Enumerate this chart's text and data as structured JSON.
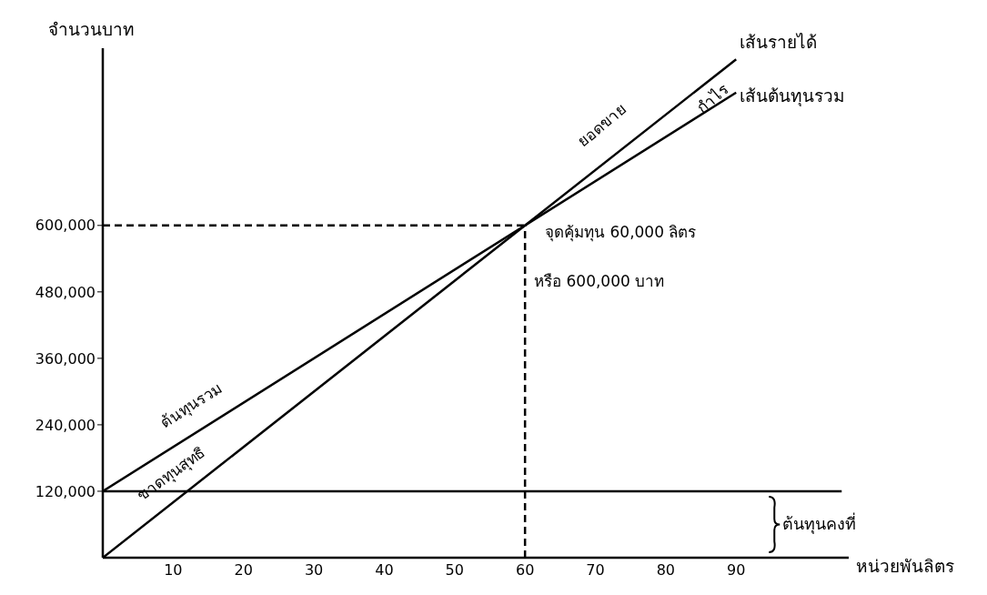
{
  "chart_data": {
    "type": "line",
    "xlabel": "หน่วยพันลิตร",
    "ylabel": "จำนวนบาท",
    "series": [
      {
        "name": "เส้นรายได้",
        "color": "#000000",
        "x": [
          0,
          90
        ],
        "values": [
          0,
          900000
        ]
      },
      {
        "name": "เส้นต้นทุนรวม",
        "color": "#000000",
        "x": [
          0,
          90
        ],
        "values": [
          120000,
          840000
        ]
      },
      {
        "name": "ต้นทุนคงที่",
        "color": "#000000",
        "x": [
          0,
          105
        ],
        "values": [
          120000,
          120000
        ]
      }
    ],
    "xlim": [
      0,
      106
    ],
    "xticks": [
      10,
      20,
      30,
      40,
      50,
      60,
      70,
      80,
      90
    ],
    "ylim": [
      0,
      920000
    ],
    "yticks": [
      {
        "value": 120000,
        "label": "120,000"
      },
      {
        "value": 240000,
        "label": "240,000"
      },
      {
        "value": 360000,
        "label": "360,000"
      },
      {
        "value": 480000,
        "label": "480,000"
      },
      {
        "value": 600000,
        "label": "600,000"
      }
    ],
    "ref_lines": [
      {
        "axis": "y",
        "value": 600000,
        "line_style": "dashed",
        "color": "#000000"
      },
      {
        "axis": "x",
        "value": 60,
        "line_style": "dashed",
        "color": "#000000"
      }
    ],
    "annotations": [
      "ยอดขาย",
      "กำไร",
      "ต้นทุนรวม",
      "ขาดทุนสุทธิ",
      "จุดคุ้มทุน 60,000 ลิตร",
      "หรือ 600,000 บาท"
    ],
    "marker": "none",
    "line_style": "solid"
  }
}
